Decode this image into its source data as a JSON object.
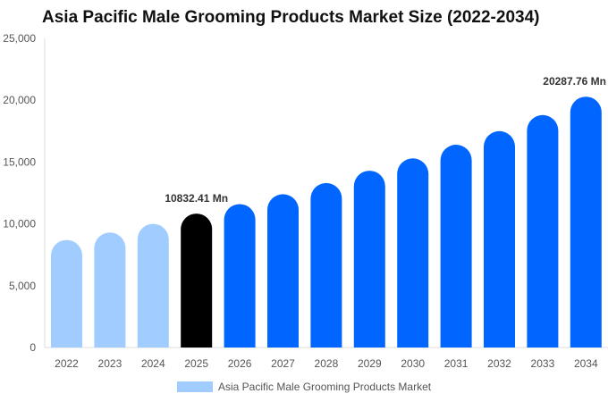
{
  "chart_data": {
    "type": "bar",
    "title": "Asia Pacific Male Grooming Products Market Size (2022-2034)",
    "categories": [
      "2022",
      "2023",
      "2024",
      "2025",
      "2026",
      "2027",
      "2028",
      "2029",
      "2030",
      "2031",
      "2032",
      "2033",
      "2034"
    ],
    "series": [
      {
        "name": "Asia Pacific Male Grooming Products Market",
        "values": [
          8700,
          9300,
          10000,
          10832.41,
          11600,
          12400,
          13300,
          14300,
          15300,
          16400,
          17500,
          18800,
          20287.76
        ]
      }
    ],
    "bar_colors": [
      "#a0ccff",
      "#a0ccff",
      "#a0ccff",
      "#000000",
      "#0066ff",
      "#0066ff",
      "#0066ff",
      "#0066ff",
      "#0066ff",
      "#0066ff",
      "#0066ff",
      "#0066ff",
      "#0066ff"
    ],
    "data_labels": [
      {
        "index": 3,
        "text": "10832.41 Mn"
      },
      {
        "index": 12,
        "text": "20287.76 Mn"
      }
    ],
    "ylim": [
      0,
      25000
    ],
    "yticks": [
      "0",
      "5,000",
      "10,000",
      "15,000",
      "20,000",
      "25,000"
    ],
    "ytick_values": [
      0,
      5000,
      10000,
      15000,
      20000,
      25000
    ],
    "legend_color": "#a0ccff",
    "legend_position": "bottom-center",
    "grid": false
  }
}
